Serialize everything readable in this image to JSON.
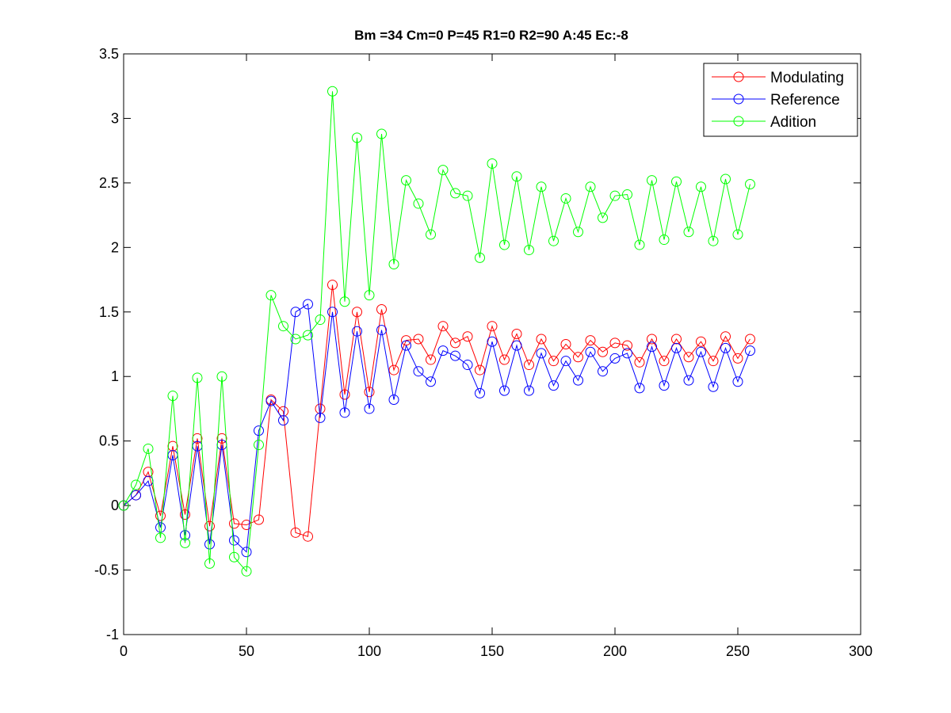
{
  "chart_data": {
    "type": "line",
    "title": "Bm =34  Cm=0  P=45  R1=0  R2=90  A:45  Ec:-8",
    "xlabel": "",
    "ylabel": "",
    "xlim": [
      0,
      300
    ],
    "ylim": [
      -1,
      3.5
    ],
    "xticks": [
      "0",
      "50",
      "100",
      "150",
      "200",
      "250",
      "300"
    ],
    "yticks": [
      "-1",
      "-0.5",
      "0",
      "0.5",
      "1",
      "1.5",
      "2",
      "2.5",
      "3",
      "3.5"
    ],
    "grid": false,
    "legend_position": "top-right",
    "marker": "circle",
    "x": [
      0,
      5,
      10,
      15,
      20,
      25,
      30,
      35,
      40,
      45,
      50,
      55,
      60,
      65,
      70,
      75,
      80,
      85,
      90,
      95,
      100,
      105,
      110,
      115,
      120,
      125,
      130,
      135,
      140,
      145,
      150,
      155,
      160,
      165,
      170,
      175,
      180,
      185,
      190,
      195,
      200,
      205,
      210,
      215,
      220,
      225,
      230,
      235,
      240,
      245,
      250,
      255
    ],
    "series": [
      {
        "name": "Modulating",
        "color": "#ff0000",
        "values": [
          0,
          0.08,
          0.26,
          -0.08,
          0.46,
          -0.07,
          0.52,
          -0.16,
          0.52,
          -0.14,
          -0.15,
          -0.11,
          0.82,
          0.73,
          -0.21,
          -0.24,
          0.75,
          1.71,
          0.86,
          1.5,
          0.88,
          1.52,
          1.05,
          1.28,
          1.29,
          1.13,
          1.39,
          1.26,
          1.31,
          1.05,
          1.39,
          1.13,
          1.33,
          1.09,
          1.29,
          1.12,
          1.25,
          1.15,
          1.28,
          1.19,
          1.26,
          1.24,
          1.11,
          1.29,
          1.12,
          1.29,
          1.15,
          1.27,
          1.12,
          1.31,
          1.14,
          1.29
        ]
      },
      {
        "name": "Reference",
        "color": "#0000ff",
        "values": [
          0,
          0.08,
          0.19,
          -0.17,
          0.39,
          -0.23,
          0.46,
          -0.3,
          0.47,
          -0.27,
          -0.36,
          0.58,
          0.81,
          0.66,
          1.5,
          1.56,
          0.68,
          1.5,
          0.72,
          1.35,
          0.75,
          1.36,
          0.82,
          1.24,
          1.04,
          0.96,
          1.2,
          1.16,
          1.09,
          0.87,
          1.27,
          0.89,
          1.24,
          0.89,
          1.18,
          0.93,
          1.12,
          0.97,
          1.19,
          1.04,
          1.14,
          1.18,
          0.91,
          1.23,
          0.93,
          1.22,
          0.97,
          1.19,
          0.92,
          1.22,
          0.96,
          1.2
        ]
      },
      {
        "name": "Adition",
        "color": "#00ff00",
        "values": [
          0,
          0.16,
          0.44,
          -0.25,
          0.85,
          -0.29,
          0.99,
          -0.45,
          1.0,
          -0.4,
          -0.51,
          0.47,
          1.63,
          1.39,
          1.29,
          1.32,
          1.44,
          3.21,
          1.58,
          2.85,
          1.63,
          2.88,
          1.87,
          2.52,
          2.34,
          2.1,
          2.6,
          2.42,
          2.4,
          1.92,
          2.65,
          2.02,
          2.55,
          1.98,
          2.47,
          2.05,
          2.38,
          2.12,
          2.47,
          2.23,
          2.4,
          2.41,
          2.02,
          2.52,
          2.06,
          2.51,
          2.12,
          2.47,
          2.05,
          2.53,
          2.1,
          2.49
        ]
      }
    ]
  }
}
